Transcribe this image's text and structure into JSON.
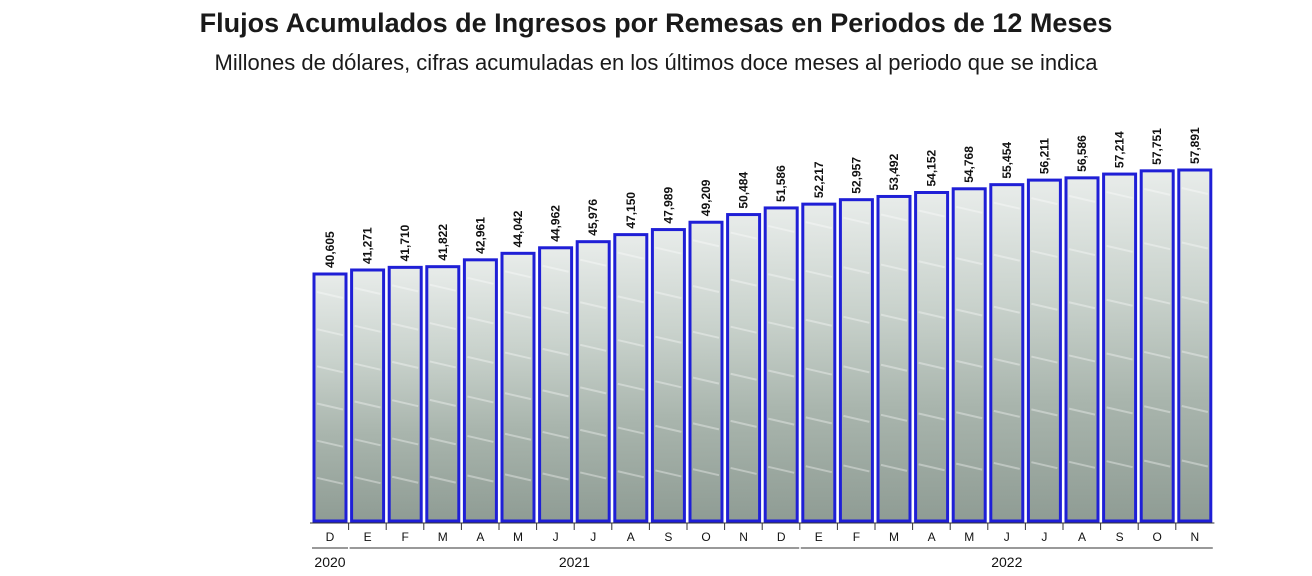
{
  "chart_data": {
    "type": "bar",
    "title": "Flujos Acumulados de Ingresos por Remesas en Periodos de 12 Meses",
    "subtitle": "Millones de dólares, cifras acumuladas en los últimos doce meses al periodo que se indica",
    "categories": [
      "D",
      "E",
      "F",
      "M",
      "A",
      "M",
      "J",
      "J",
      "A",
      "S",
      "O",
      "N",
      "D",
      "E",
      "F",
      "M",
      "A",
      "M",
      "J",
      "J",
      "A",
      "S",
      "O",
      "N"
    ],
    "values": [
      40605,
      41271,
      41710,
      41822,
      42961,
      44042,
      44962,
      45976,
      47150,
      47989,
      49209,
      50484,
      51586,
      52217,
      52957,
      53492,
      54152,
      54768,
      55454,
      56211,
      56586,
      57214,
      57751,
      57891
    ],
    "value_labels": [
      "40,605",
      "41,271",
      "41,710",
      "41,822",
      "42,961",
      "44,042",
      "44,962",
      "45,976",
      "47,150",
      "47,989",
      "49,209",
      "50,484",
      "51,586",
      "52,217",
      "52,957",
      "53,492",
      "54,152",
      "54,768",
      "55,454",
      "56,211",
      "56,586",
      "57,214",
      "57,751",
      "57,891"
    ],
    "years": [
      {
        "label": "2020",
        "start": 0,
        "end": 0
      },
      {
        "label": "2021",
        "start": 1,
        "end": 12
      },
      {
        "label": "2022",
        "start": 13,
        "end": 23
      }
    ],
    "xlabel": "",
    "ylabel": "",
    "grid": false,
    "bar_fill": "#b9c4bf",
    "bar_stroke": "#1f1fd6"
  }
}
